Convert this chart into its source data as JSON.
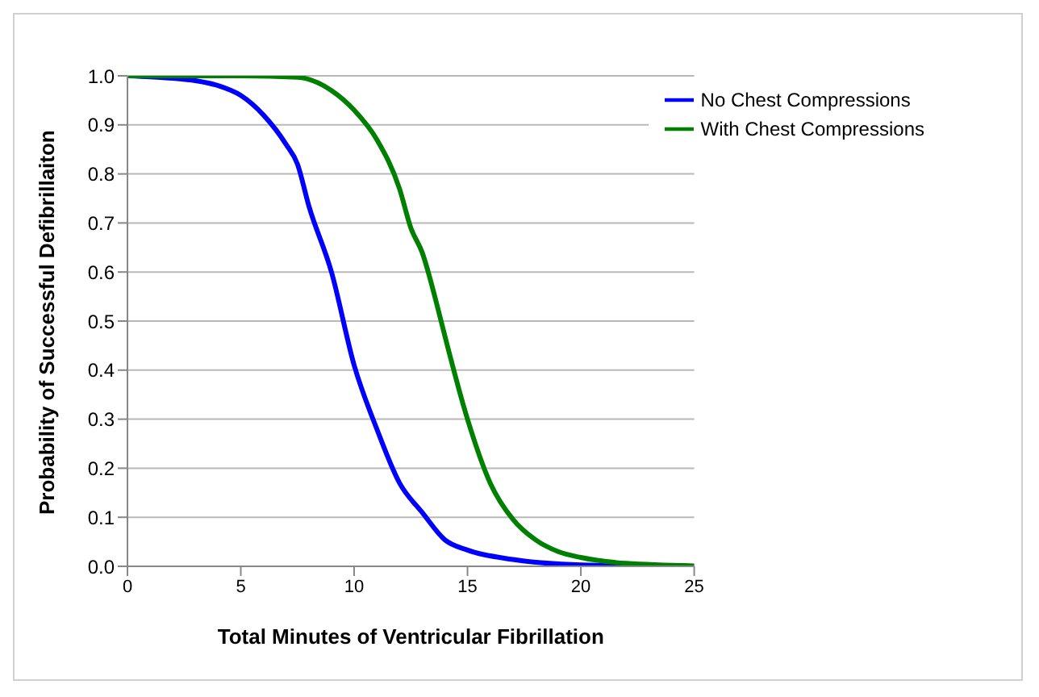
{
  "chart_data": {
    "type": "line",
    "xlabel": "Total Minutes of Ventricular Fibrillation",
    "ylabel": "Probability of Successful Defibrillaiton",
    "xlim": [
      0,
      25
    ],
    "xticks": [
      0,
      5,
      10,
      15,
      20,
      25
    ],
    "ylim": [
      0,
      1
    ],
    "yticks": [
      {
        "value": 0,
        "label": "0.0"
      },
      0.1,
      0.2,
      0.3,
      0.4,
      0.5,
      0.6,
      0.7,
      0.8,
      0.9,
      {
        "value": 1,
        "label": "1.0"
      }
    ],
    "grid": "y",
    "legend": "top right",
    "marker": "none",
    "line_style": "solid",
    "series": [
      {
        "name": "No Chest Compressions",
        "color": "#0000ff",
        "x": [
          0,
          1,
          2,
          3,
          4,
          5,
          6,
          7,
          7.5,
          8,
          9,
          10,
          11,
          12,
          13,
          14,
          15,
          17,
          20,
          25
        ],
        "values": [
          1.0,
          0.998,
          0.995,
          0.99,
          0.98,
          0.96,
          0.92,
          0.86,
          0.82,
          0.735,
          0.6,
          0.41,
          0.28,
          0.17,
          0.11,
          0.054,
          0.033,
          0.014,
          0.003,
          0
        ]
      },
      {
        "name": "With Chest Compressions",
        "color": "#008000",
        "x": [
          0,
          5,
          7.5,
          9,
          10,
          11,
          12,
          12.5,
          13,
          13.67,
          14,
          15,
          16,
          17,
          18,
          19,
          20,
          22,
          25
        ],
        "values": [
          1.0,
          1.0,
          0.997,
          0.97,
          0.93,
          0.87,
          0.77,
          0.69,
          0.64,
          0.53,
          0.47,
          0.3,
          0.17,
          0.096,
          0.054,
          0.03,
          0.018,
          0.006,
          0.001
        ]
      }
    ]
  }
}
